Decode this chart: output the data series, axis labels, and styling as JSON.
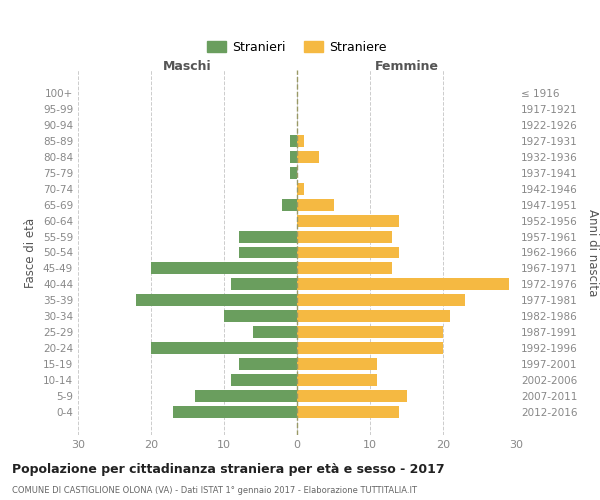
{
  "age_groups": [
    "100+",
    "95-99",
    "90-94",
    "85-89",
    "80-84",
    "75-79",
    "70-74",
    "65-69",
    "60-64",
    "55-59",
    "50-54",
    "45-49",
    "40-44",
    "35-39",
    "30-34",
    "25-29",
    "20-24",
    "15-19",
    "10-14",
    "5-9",
    "0-4"
  ],
  "birth_years": [
    "≤ 1916",
    "1917-1921",
    "1922-1926",
    "1927-1931",
    "1932-1936",
    "1937-1941",
    "1942-1946",
    "1947-1951",
    "1952-1956",
    "1957-1961",
    "1962-1966",
    "1967-1971",
    "1972-1976",
    "1977-1981",
    "1982-1986",
    "1987-1991",
    "1992-1996",
    "1997-2001",
    "2002-2006",
    "2007-2011",
    "2012-2016"
  ],
  "maschi": [
    0,
    0,
    0,
    1,
    1,
    1,
    0,
    2,
    0,
    8,
    8,
    20,
    9,
    22,
    10,
    6,
    20,
    8,
    9,
    14,
    17
  ],
  "femmine": [
    0,
    0,
    0,
    1,
    3,
    0,
    1,
    5,
    14,
    13,
    14,
    13,
    29,
    23,
    21,
    20,
    20,
    11,
    11,
    15,
    14
  ],
  "color_maschi": "#6a9e5e",
  "color_femmine": "#f5b942",
  "xlabel_left": "Maschi",
  "xlabel_right": "Femmine",
  "ylabel_left": "Fasce di età",
  "ylabel_right": "Anni di nascita",
  "xlim": 30,
  "title": "Popolazione per cittadinanza straniera per età e sesso - 2017",
  "subtitle": "COMUNE DI CASTIGLIONE OLONA (VA) - Dati ISTAT 1° gennaio 2017 - Elaborazione TUTTITALIA.IT",
  "legend_maschi": "Stranieri",
  "legend_femmine": "Straniere",
  "bg_color": "#ffffff",
  "grid_color": "#cccccc",
  "tick_color": "#888888",
  "bar_height": 0.75
}
